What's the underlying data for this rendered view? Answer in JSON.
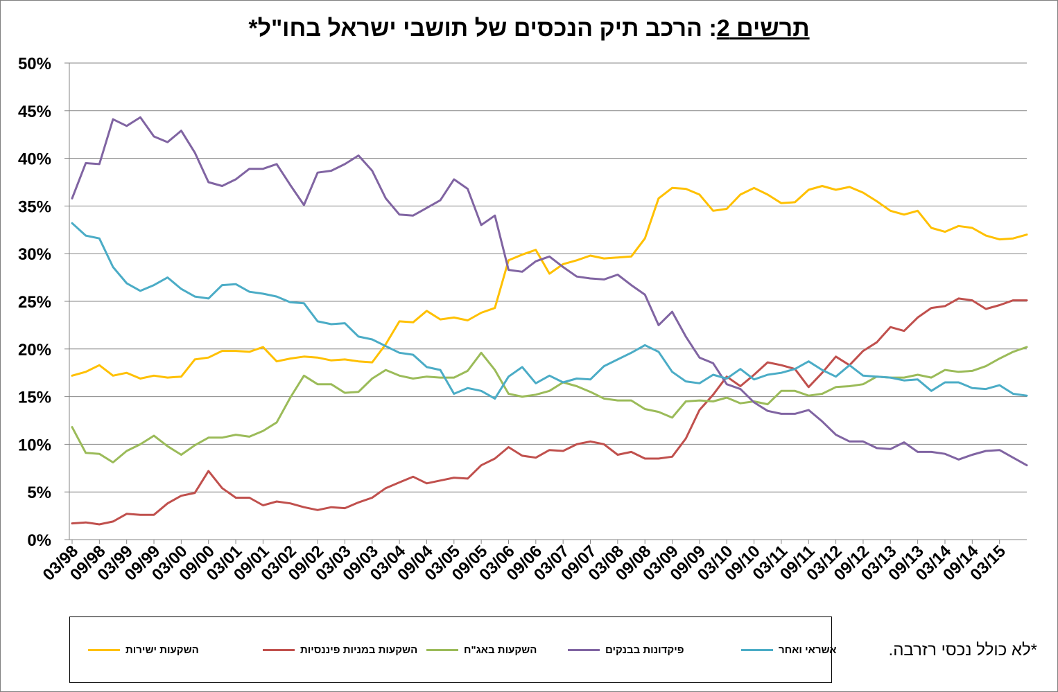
{
  "title": {
    "lead": "תרשים 2",
    "rest": ": הרכב תיק הנכסים של תושבי ישראל בחו\"ל*"
  },
  "footnote": "*לא כולל נכסי רזרבה.",
  "chart_data": {
    "type": "line",
    "title": "תרשים 2: הרכב תיק הנכסים של תושבי ישראל בחו\"ל*",
    "ylim": [
      0,
      50
    ],
    "y_ticks": [
      0,
      5,
      10,
      15,
      20,
      25,
      30,
      35,
      40,
      45,
      50
    ],
    "y_tick_labels": [
      "0%",
      "5%",
      "10%",
      "15%",
      "20%",
      "25%",
      "30%",
      "35%",
      "40%",
      "45%",
      "50%"
    ],
    "grid": "horizontal",
    "legend_position": "bottom",
    "x": [
      "03/98",
      "06/98",
      "09/98",
      "12/98",
      "03/99",
      "06/99",
      "09/99",
      "12/99",
      "03/00",
      "06/00",
      "09/00",
      "12/00",
      "03/01",
      "06/01",
      "09/01",
      "12/01",
      "03/02",
      "06/02",
      "09/02",
      "12/02",
      "03/03",
      "06/03",
      "09/03",
      "12/03",
      "03/04",
      "06/04",
      "09/04",
      "12/04",
      "03/05",
      "06/05",
      "09/05",
      "12/05",
      "03/06",
      "06/06",
      "09/06",
      "12/06",
      "03/07",
      "06/07",
      "09/07",
      "12/07",
      "03/08",
      "06/08",
      "09/08",
      "12/08",
      "03/09",
      "06/09",
      "09/09",
      "12/09",
      "03/10",
      "06/10",
      "09/10",
      "12/10",
      "03/11",
      "06/11",
      "09/11",
      "12/11",
      "03/12",
      "06/12",
      "09/12",
      "12/12",
      "03/13",
      "06/13",
      "09/13",
      "12/13",
      "03/14",
      "06/14",
      "09/14",
      "12/14",
      "03/15",
      "06/15",
      "09/15"
    ],
    "x_tick_labels": [
      "03/98",
      "09/98",
      "03/99",
      "09/99",
      "03/00",
      "09/00",
      "03/01",
      "09/01",
      "03/02",
      "09/02",
      "03/03",
      "09/03",
      "03/04",
      "09/04",
      "03/05",
      "09/05",
      "03/06",
      "09/06",
      "03/07",
      "09/07",
      "03/08",
      "09/08",
      "03/09",
      "09/09",
      "03/10",
      "09/10",
      "03/11",
      "09/11",
      "03/12",
      "09/12",
      "03/13",
      "09/13",
      "03/14",
      "09/14",
      "03/15"
    ],
    "series": [
      {
        "name": "השקעות ישירות",
        "color": "#ffc000",
        "values": [
          17.2,
          17.6,
          18.3,
          17.2,
          17.5,
          16.9,
          17.2,
          17.0,
          17.1,
          18.9,
          19.1,
          19.8,
          19.8,
          19.7,
          20.2,
          18.7,
          19.0,
          19.2,
          19.1,
          18.8,
          18.9,
          18.7,
          18.6,
          20.5,
          22.9,
          22.8,
          24.0,
          23.1,
          23.3,
          23.0,
          23.8,
          24.3,
          29.3,
          29.9,
          30.4,
          27.9,
          28.9,
          29.3,
          29.8,
          29.5,
          29.6,
          29.7,
          31.6,
          35.8,
          36.9,
          36.8,
          36.2,
          34.5,
          34.7,
          36.2,
          36.9,
          36.2,
          35.3,
          35.4,
          36.7,
          37.1,
          36.7,
          37.0,
          36.4,
          35.5,
          34.5,
          34.1,
          34.5,
          32.7,
          32.3,
          32.9,
          32.7,
          31.9,
          31.5,
          31.6,
          32.0
        ]
      },
      {
        "name": "השקעות במניות פיננסיות",
        "color": "#c0504d",
        "values": [
          1.7,
          1.8,
          1.6,
          1.9,
          2.7,
          2.6,
          2.6,
          3.8,
          4.6,
          4.9,
          7.2,
          5.4,
          4.4,
          4.4,
          3.6,
          4.0,
          3.8,
          3.4,
          3.1,
          3.4,
          3.3,
          3.9,
          4.4,
          5.4,
          6.0,
          6.6,
          5.9,
          6.2,
          6.5,
          6.4,
          7.8,
          8.5,
          9.7,
          8.8,
          8.6,
          9.4,
          9.3,
          10.0,
          10.3,
          10.0,
          8.9,
          9.2,
          8.5,
          8.5,
          8.7,
          10.6,
          13.6,
          15.2,
          17.1,
          16.1,
          17.3,
          18.6,
          18.3,
          17.9,
          16.0,
          17.5,
          19.2,
          18.3,
          19.8,
          20.7,
          22.3,
          21.9,
          23.3,
          24.3,
          24.5,
          25.3,
          25.1,
          24.2,
          24.6,
          25.1,
          25.1
        ]
      },
      {
        "name": "השקעות באג\"ח",
        "color": "#9bbb59",
        "values": [
          11.8,
          9.1,
          9.0,
          8.1,
          9.3,
          10.0,
          10.9,
          9.8,
          8.9,
          9.9,
          10.7,
          10.7,
          11.0,
          10.8,
          11.4,
          12.3,
          14.9,
          17.2,
          16.3,
          16.3,
          15.4,
          15.5,
          16.9,
          17.8,
          17.2,
          16.9,
          17.1,
          17.0,
          17.0,
          17.7,
          19.6,
          17.8,
          15.3,
          15.0,
          15.2,
          15.6,
          16.5,
          16.1,
          15.5,
          14.8,
          14.6,
          14.6,
          13.7,
          13.4,
          12.8,
          14.5,
          14.6,
          14.5,
          14.9,
          14.3,
          14.5,
          14.2,
          15.6,
          15.6,
          15.1,
          15.3,
          16.0,
          16.1,
          16.3,
          17.1,
          17.0,
          17.0,
          17.3,
          17.0,
          17.8,
          17.6,
          17.7,
          18.2,
          19.0,
          19.7,
          20.2
        ]
      },
      {
        "name": "פיקדונות בבנקים",
        "color": "#8064a2",
        "values": [
          35.8,
          39.5,
          39.4,
          44.1,
          43.4,
          44.3,
          42.3,
          41.7,
          42.9,
          40.6,
          37.5,
          37.1,
          37.8,
          38.9,
          38.9,
          39.4,
          37.2,
          35.1,
          38.5,
          38.7,
          39.4,
          40.3,
          38.7,
          35.8,
          34.1,
          34.0,
          34.8,
          35.6,
          37.8,
          36.8,
          33.0,
          34.0,
          28.3,
          28.1,
          29.2,
          29.7,
          28.6,
          27.6,
          27.4,
          27.3,
          27.8,
          26.7,
          25.7,
          22.5,
          23.9,
          21.3,
          19.1,
          18.5,
          16.3,
          15.8,
          14.4,
          13.5,
          13.2,
          13.2,
          13.6,
          12.4,
          11.0,
          10.3,
          10.3,
          9.6,
          9.5,
          10.2,
          9.2,
          9.2,
          9.0,
          8.4,
          8.9,
          9.3,
          9.4,
          8.6,
          7.8
        ]
      },
      {
        "name": "אשראי ואחר",
        "color": "#4bacc6",
        "values": [
          33.2,
          31.9,
          31.6,
          28.6,
          26.9,
          26.1,
          26.7,
          27.5,
          26.3,
          25.5,
          25.3,
          26.7,
          26.8,
          26.0,
          25.8,
          25.5,
          24.9,
          24.8,
          22.9,
          22.6,
          22.7,
          21.3,
          21.0,
          20.3,
          19.6,
          19.4,
          18.1,
          17.8,
          15.3,
          15.9,
          15.6,
          14.8,
          17.1,
          18.1,
          16.4,
          17.2,
          16.5,
          16.9,
          16.8,
          18.2,
          18.9,
          19.6,
          20.4,
          19.7,
          17.6,
          16.6,
          16.4,
          17.3,
          16.9,
          17.9,
          16.8,
          17.3,
          17.5,
          17.9,
          18.7,
          17.8,
          17.1,
          18.3,
          17.2,
          17.1,
          17.0,
          16.7,
          16.8,
          15.6,
          16.5,
          16.5,
          15.9,
          15.8,
          16.2,
          15.3,
          15.1
        ]
      }
    ]
  },
  "legend": [
    {
      "label": "השקעות ישירות",
      "color": "#ffc000"
    },
    {
      "label": "השקעות במניות פיננסיות",
      "color": "#c0504d"
    },
    {
      "label": "השקעות באג\"ח",
      "color": "#9bbb59"
    },
    {
      "label": "פיקדונות בבנקים",
      "color": "#8064a2"
    },
    {
      "label": "אשראי ואחר",
      "color": "#4bacc6"
    }
  ]
}
